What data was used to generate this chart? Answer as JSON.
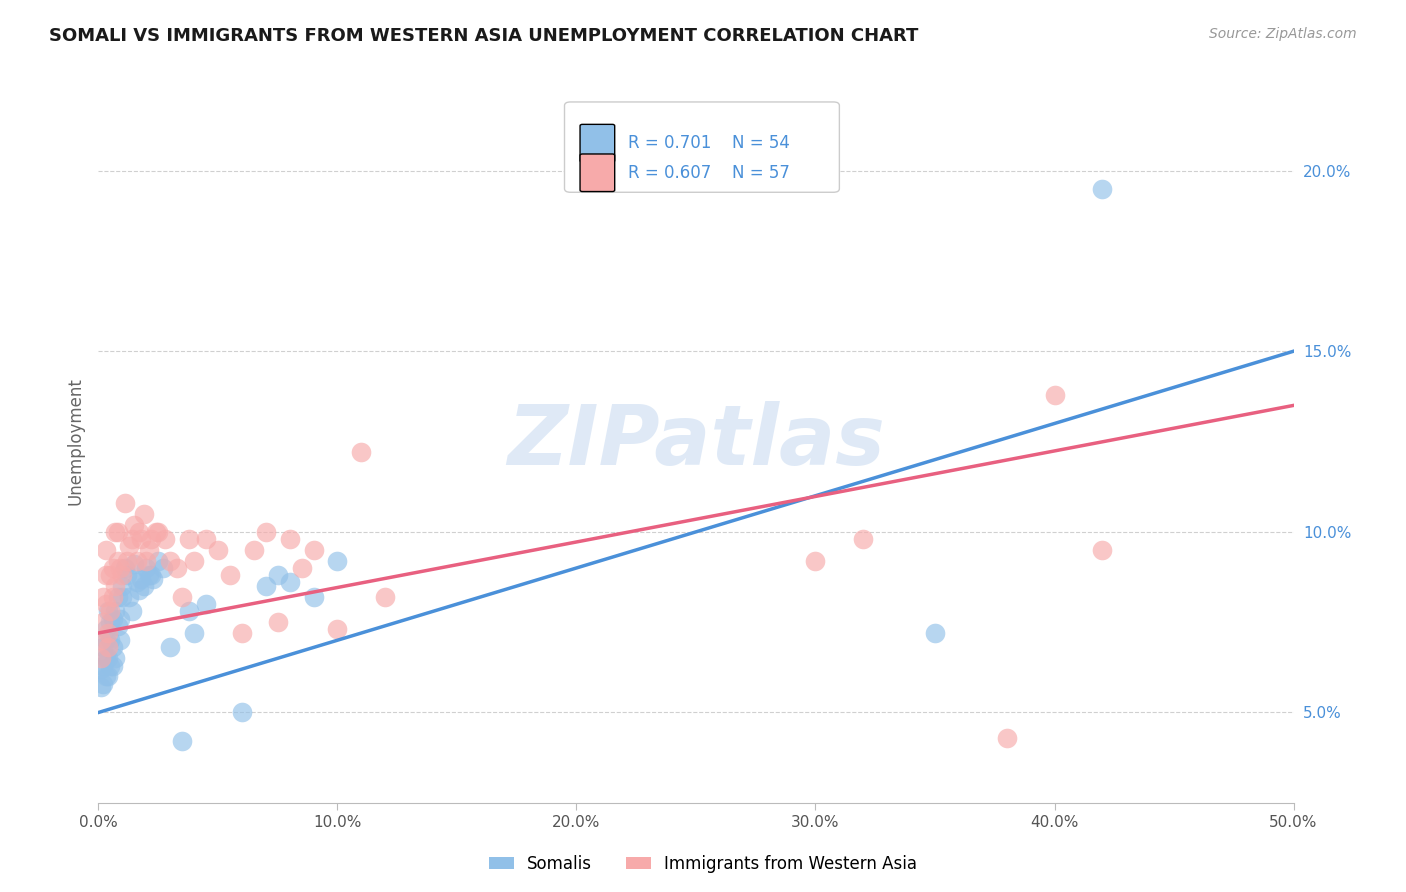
{
  "title": "SOMALI VS IMMIGRANTS FROM WESTERN ASIA UNEMPLOYMENT CORRELATION CHART",
  "source": "Source: ZipAtlas.com",
  "ylabel": "Unemployment",
  "watermark": "ZIPatlas",
  "x_min": 0.0,
  "x_max": 0.5,
  "y_min": 0.025,
  "y_max": 0.225,
  "yticks": [
    0.05,
    0.1,
    0.15,
    0.2
  ],
  "ytick_labels": [
    "5.0%",
    "10.0%",
    "15.0%",
    "20.0%"
  ],
  "xticks": [
    0.0,
    0.1,
    0.2,
    0.3,
    0.4,
    0.5
  ],
  "xtick_labels": [
    "0.0%",
    "10.0%",
    "20.0%",
    "30.0%",
    "40.0%",
    "50.0%"
  ],
  "somali_R": 0.701,
  "somali_N": 54,
  "western_asia_R": 0.607,
  "western_asia_N": 57,
  "somali_color": "#91c0e8",
  "western_asia_color": "#f7aaaa",
  "somali_line_color": "#4a90d9",
  "western_asia_line_color": "#e86080",
  "label_color": "#4a90d9",
  "legend_label_somali": "Somalis",
  "legend_label_western": "Immigrants from Western Asia",
  "somali_line_start_y": 0.05,
  "somali_line_end_y": 0.15,
  "western_line_start_y": 0.072,
  "western_line_end_y": 0.135,
  "somali_x": [
    0.001,
    0.001,
    0.002,
    0.002,
    0.002,
    0.003,
    0.003,
    0.003,
    0.003,
    0.004,
    0.004,
    0.004,
    0.005,
    0.005,
    0.005,
    0.006,
    0.006,
    0.006,
    0.007,
    0.007,
    0.008,
    0.008,
    0.009,
    0.009,
    0.01,
    0.01,
    0.011,
    0.012,
    0.013,
    0.014,
    0.015,
    0.016,
    0.017,
    0.018,
    0.019,
    0.02,
    0.021,
    0.022,
    0.023,
    0.025,
    0.027,
    0.03,
    0.035,
    0.038,
    0.04,
    0.045,
    0.06,
    0.07,
    0.075,
    0.08,
    0.09,
    0.1,
    0.35,
    0.42
  ],
  "somali_y": [
    0.057,
    0.062,
    0.068,
    0.063,
    0.058,
    0.073,
    0.07,
    0.065,
    0.06,
    0.078,
    0.065,
    0.06,
    0.075,
    0.07,
    0.063,
    0.076,
    0.068,
    0.063,
    0.078,
    0.065,
    0.082,
    0.074,
    0.076,
    0.07,
    0.085,
    0.082,
    0.09,
    0.088,
    0.082,
    0.078,
    0.091,
    0.086,
    0.084,
    0.087,
    0.085,
    0.09,
    0.088,
    0.088,
    0.087,
    0.092,
    0.09,
    0.068,
    0.042,
    0.078,
    0.072,
    0.08,
    0.05,
    0.085,
    0.088,
    0.086,
    0.082,
    0.092,
    0.072,
    0.195
  ],
  "western_asia_x": [
    0.001,
    0.001,
    0.002,
    0.002,
    0.003,
    0.003,
    0.003,
    0.004,
    0.004,
    0.005,
    0.005,
    0.006,
    0.006,
    0.007,
    0.007,
    0.008,
    0.008,
    0.009,
    0.01,
    0.011,
    0.012,
    0.013,
    0.014,
    0.015,
    0.016,
    0.017,
    0.018,
    0.019,
    0.02,
    0.021,
    0.022,
    0.024,
    0.025,
    0.028,
    0.03,
    0.033,
    0.035,
    0.038,
    0.04,
    0.045,
    0.05,
    0.055,
    0.06,
    0.065,
    0.07,
    0.075,
    0.08,
    0.085,
    0.09,
    0.1,
    0.11,
    0.12,
    0.3,
    0.32,
    0.38,
    0.4,
    0.42
  ],
  "western_asia_y": [
    0.07,
    0.065,
    0.082,
    0.075,
    0.08,
    0.095,
    0.088,
    0.072,
    0.068,
    0.078,
    0.088,
    0.09,
    0.082,
    0.1,
    0.085,
    0.1,
    0.092,
    0.09,
    0.088,
    0.108,
    0.092,
    0.096,
    0.098,
    0.102,
    0.092,
    0.1,
    0.098,
    0.105,
    0.092,
    0.095,
    0.098,
    0.1,
    0.1,
    0.098,
    0.092,
    0.09,
    0.082,
    0.098,
    0.092,
    0.098,
    0.095,
    0.088,
    0.072,
    0.095,
    0.1,
    0.075,
    0.098,
    0.09,
    0.095,
    0.073,
    0.122,
    0.082,
    0.092,
    0.098,
    0.043,
    0.138,
    0.095
  ]
}
